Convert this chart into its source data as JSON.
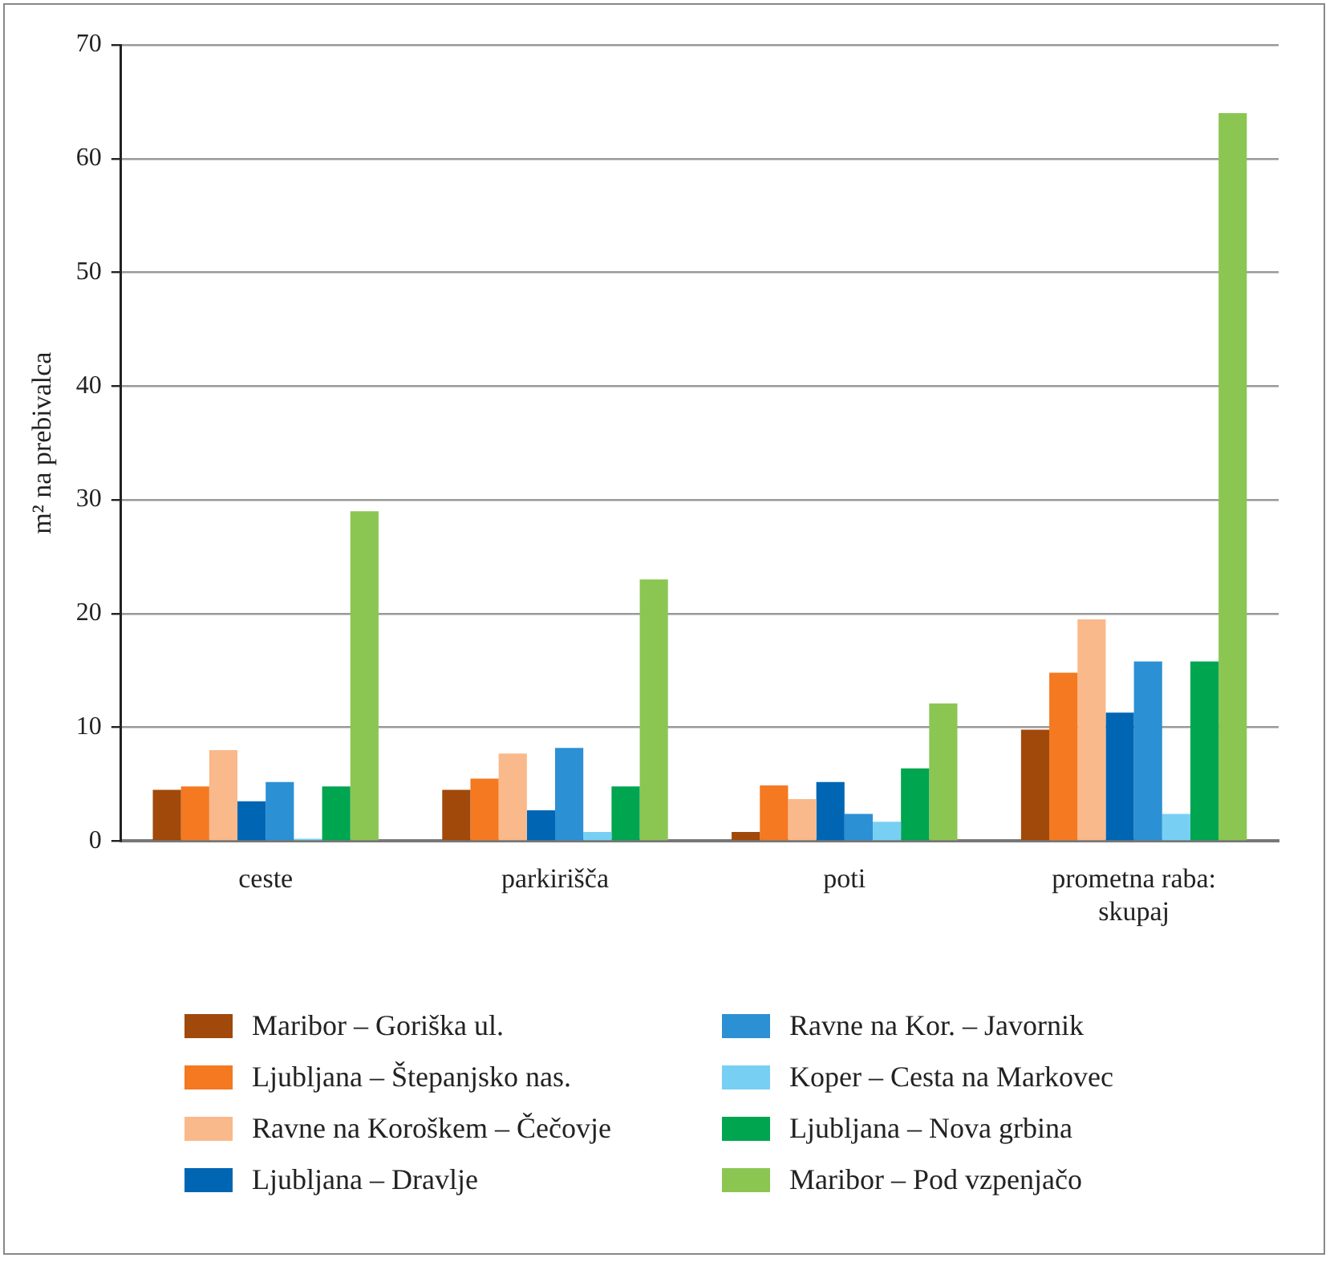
{
  "chart_data": {
    "type": "bar",
    "ylabel": "m² na prebivalca",
    "categories": [
      "ceste",
      "parkirišča",
      "poti",
      "prometna raba: skupaj"
    ],
    "ylim": [
      0,
      70
    ],
    "yticks": [
      0,
      10,
      20,
      30,
      40,
      50,
      60,
      70
    ],
    "grid": "y",
    "legend": "bottom",
    "series": [
      {
        "name": "Maribor – Goriška ul.",
        "color": "#a0490a",
        "values": [
          4.5,
          4.5,
          0.8,
          9.8
        ]
      },
      {
        "name": "Ljubljana – Štepanjsko nas.",
        "color": "#f47920",
        "values": [
          4.8,
          5.5,
          4.9,
          14.8
        ]
      },
      {
        "name": "Ravne na Koroškem – Čečovje",
        "color": "#f9b98a",
        "values": [
          8.0,
          7.7,
          3.7,
          19.5
        ]
      },
      {
        "name": "Ljubljana – Dravlje",
        "color": "#0066b3",
        "values": [
          3.5,
          2.7,
          5.2,
          11.3
        ]
      },
      {
        "name": "Ravne na Kor. – Javornik",
        "color": "#2b90d4",
        "values": [
          5.2,
          8.2,
          2.4,
          15.8
        ]
      },
      {
        "name": "Koper – Cesta na Markovec",
        "color": "#78cff4",
        "values": [
          0.2,
          0.8,
          1.7,
          2.4
        ]
      },
      {
        "name": "Ljubljana – Nova grbina",
        "color": "#00a550",
        "values": [
          4.8,
          4.8,
          6.4,
          15.8
        ]
      },
      {
        "name": "Maribor – Pod vzpenjačo",
        "color": "#8bc653",
        "values": [
          29.0,
          23.0,
          12.1,
          64.0
        ]
      }
    ]
  }
}
